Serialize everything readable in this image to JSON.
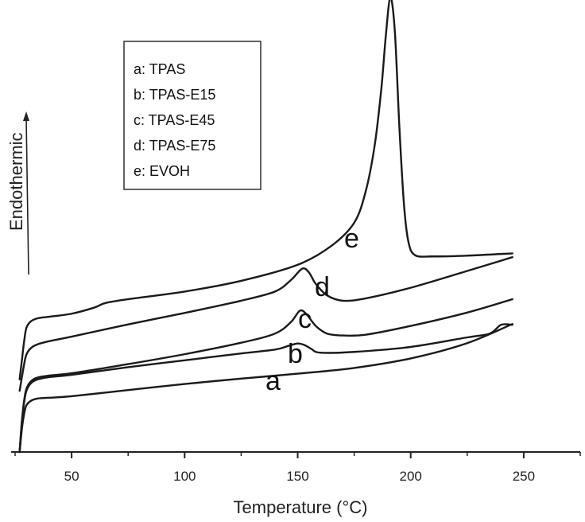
{
  "chart_data": {
    "type": "line",
    "xlabel": "Temperature (°C)",
    "ylabel": "Endothermic",
    "xlim": [
      25,
      275
    ],
    "xticks": [
      50,
      100,
      150,
      200,
      250
    ],
    "y_ticks_shown": false,
    "legend": {
      "placement": "top-left",
      "entries": [
        "a: TPAS",
        "b: TPAS-E15",
        "c: TPAS-E45",
        "d: TPAS-E75",
        "e: EVOH"
      ]
    },
    "curve_labels": [
      "a",
      "b",
      "c",
      "d",
      "e"
    ],
    "series": [
      {
        "name": "a",
        "x": [
          27,
          28,
          29,
          30,
          32,
          35,
          40,
          50,
          75,
          100,
          125,
          150,
          175,
          200,
          225,
          245
        ],
        "y": [
          0.0,
          0.6,
          1.0,
          1.22,
          1.34,
          1.4,
          1.42,
          1.46,
          1.62,
          1.78,
          1.92,
          2.05,
          2.2,
          2.45,
          2.85,
          3.35
        ]
      },
      {
        "name": "b",
        "x": [
          27,
          28,
          29,
          30,
          32,
          35,
          40,
          50,
          75,
          100,
          125,
          140,
          146,
          150,
          153,
          156,
          160,
          175,
          200,
          225,
          235,
          240,
          245
        ],
        "y": [
          0.0,
          0.8,
          1.3,
          1.6,
          1.8,
          1.9,
          1.96,
          2.02,
          2.22,
          2.4,
          2.58,
          2.68,
          2.78,
          2.84,
          2.8,
          2.7,
          2.6,
          2.62,
          2.75,
          3.0,
          3.1,
          3.33,
          3.33
        ]
      },
      {
        "name": "c",
        "x": [
          27,
          28,
          29,
          30,
          32,
          35,
          40,
          50,
          75,
          100,
          125,
          140,
          147,
          151,
          154,
          158,
          163,
          170,
          180,
          200,
          225,
          245
        ],
        "y": [
          0.0,
          0.8,
          1.35,
          1.65,
          1.85,
          1.95,
          2.0,
          2.06,
          2.3,
          2.56,
          2.86,
          3.1,
          3.4,
          3.7,
          3.6,
          3.3,
          3.1,
          3.05,
          3.07,
          3.3,
          3.65,
          4.0
        ]
      },
      {
        "name": "d",
        "x": [
          27,
          29,
          30,
          32,
          35,
          40,
          50,
          75,
          100,
          125,
          140,
          147,
          152,
          155,
          158,
          163,
          170,
          180,
          200,
          225,
          245
        ],
        "y": [
          1.6,
          2.3,
          2.55,
          2.72,
          2.82,
          2.9,
          3.02,
          3.34,
          3.64,
          3.96,
          4.2,
          4.5,
          4.8,
          4.7,
          4.4,
          4.1,
          3.96,
          4.02,
          4.3,
          4.74,
          5.1
        ]
      },
      {
        "name": "e",
        "x": [
          27,
          28,
          29,
          30,
          32,
          35,
          40,
          50,
          60,
          65,
          75,
          100,
          125,
          150,
          165,
          175,
          180,
          184,
          187,
          189,
          191,
          193,
          195,
          197,
          199,
          202,
          210,
          225,
          245
        ],
        "y": [
          1.9,
          2.4,
          2.9,
          3.25,
          3.42,
          3.5,
          3.54,
          3.62,
          3.78,
          3.9,
          4.0,
          4.2,
          4.48,
          4.9,
          5.4,
          6.0,
          6.8,
          8.0,
          9.5,
          10.9,
          11.9,
          11.0,
          8.5,
          6.5,
          5.5,
          5.15,
          5.12,
          5.14,
          5.2
        ]
      }
    ]
  }
}
